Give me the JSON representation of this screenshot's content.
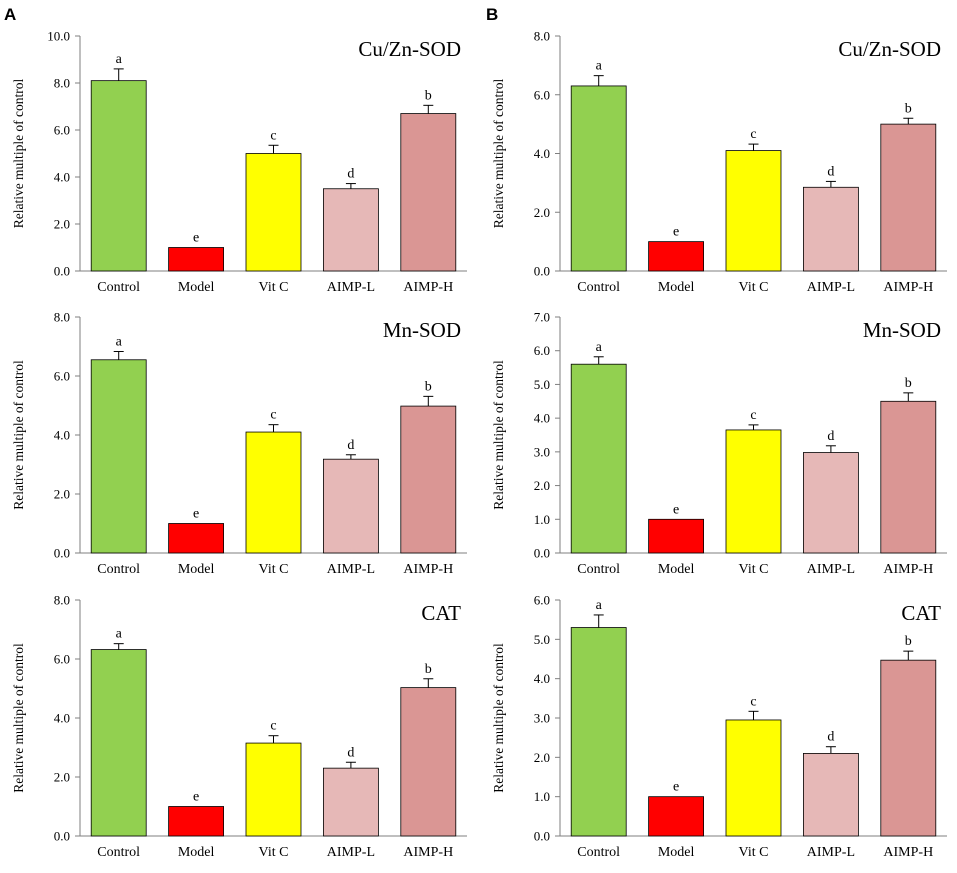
{
  "panels": [
    "A",
    "B"
  ],
  "chart_data": [
    {
      "type": "bar",
      "panel": "A",
      "title": "Cu/Zn-SOD",
      "ylabel": "Relative multiple of control",
      "xlabel": "",
      "categories": [
        "Control",
        "Model",
        "Vit C",
        "AIMP-L",
        "AIMP-H"
      ],
      "values": [
        8.1,
        1.0,
        5.0,
        3.5,
        6.7
      ],
      "errors": [
        0.5,
        0.0,
        0.35,
        0.22,
        0.35
      ],
      "significance": [
        "a",
        "e",
        "c",
        "d",
        "b"
      ],
      "ylim": [
        0,
        10
      ],
      "yticks": [
        "0.0",
        "2.0",
        "4.0",
        "6.0",
        "8.0",
        "10.0"
      ],
      "colors": [
        "#92d050",
        "#ff0000",
        "#ffff00",
        "#e6b8b7",
        "#da9694"
      ]
    },
    {
      "type": "bar",
      "panel": "B",
      "title": "Cu/Zn-SOD",
      "ylabel": "Relative multiple of control",
      "xlabel": "",
      "categories": [
        "Control",
        "Model",
        "Vit C",
        "AIMP-L",
        "AIMP-H"
      ],
      "values": [
        6.3,
        1.0,
        4.1,
        2.85,
        5.0
      ],
      "errors": [
        0.35,
        0.0,
        0.22,
        0.2,
        0.2
      ],
      "significance": [
        "a",
        "e",
        "c",
        "d",
        "b"
      ],
      "ylim": [
        0,
        8
      ],
      "yticks": [
        "0.0",
        "2.0",
        "4.0",
        "6.0",
        "8.0"
      ],
      "colors": [
        "#92d050",
        "#ff0000",
        "#ffff00",
        "#e6b8b7",
        "#da9694"
      ]
    },
    {
      "type": "bar",
      "panel": "A",
      "title": "Mn-SOD",
      "ylabel": "Relative multiple of control",
      "xlabel": "",
      "categories": [
        "Control",
        "Model",
        "Vit C",
        "AIMP-L",
        "AIMP-H"
      ],
      "values": [
        6.55,
        1.0,
        4.1,
        3.18,
        4.98
      ],
      "errors": [
        0.28,
        0.0,
        0.25,
        0.15,
        0.33
      ],
      "significance": [
        "a",
        "e",
        "c",
        "d",
        "b"
      ],
      "ylim": [
        0,
        8
      ],
      "yticks": [
        "0.0",
        "2.0",
        "4.0",
        "6.0",
        "8.0"
      ],
      "colors": [
        "#92d050",
        "#ff0000",
        "#ffff00",
        "#e6b8b7",
        "#da9694"
      ]
    },
    {
      "type": "bar",
      "panel": "B",
      "title": "Mn-SOD",
      "ylabel": "Relative multiple of control",
      "xlabel": "",
      "categories": [
        "Control",
        "Model",
        "Vit C",
        "AIMP-L",
        "AIMP-H"
      ],
      "values": [
        5.6,
        1.0,
        3.65,
        2.98,
        4.5
      ],
      "errors": [
        0.22,
        0.0,
        0.15,
        0.2,
        0.25
      ],
      "significance": [
        "a",
        "e",
        "c",
        "d",
        "b"
      ],
      "ylim": [
        0,
        7
      ],
      "yticks": [
        "0.0",
        "1.0",
        "2.0",
        "3.0",
        "4.0",
        "5.0",
        "6.0",
        "7.0"
      ],
      "colors": [
        "#92d050",
        "#ff0000",
        "#ffff00",
        "#e6b8b7",
        "#da9694"
      ]
    },
    {
      "type": "bar",
      "panel": "A",
      "title": "CAT",
      "ylabel": "Relative multiple of control",
      "xlabel": "",
      "categories": [
        "Control",
        "Model",
        "Vit C",
        "AIMP-L",
        "AIMP-H"
      ],
      "values": [
        6.32,
        1.0,
        3.15,
        2.3,
        5.03
      ],
      "errors": [
        0.2,
        0.0,
        0.25,
        0.2,
        0.3
      ],
      "significance": [
        "a",
        "e",
        "c",
        "d",
        "b"
      ],
      "ylim": [
        0,
        8
      ],
      "yticks": [
        "0.0",
        "2.0",
        "4.0",
        "6.0",
        "8.0"
      ],
      "colors": [
        "#92d050",
        "#ff0000",
        "#ffff00",
        "#e6b8b7",
        "#da9694"
      ]
    },
    {
      "type": "bar",
      "panel": "B",
      "title": "CAT",
      "ylabel": "Relative multiple of control",
      "xlabel": "",
      "categories": [
        "Control",
        "Model",
        "Vit C",
        "AIMP-L",
        "AIMP-H"
      ],
      "values": [
        5.3,
        1.0,
        2.95,
        2.1,
        4.47
      ],
      "errors": [
        0.32,
        0.0,
        0.22,
        0.17,
        0.23
      ],
      "significance": [
        "a",
        "e",
        "c",
        "d",
        "b"
      ],
      "ylim": [
        0,
        6
      ],
      "yticks": [
        "0.0",
        "1.0",
        "2.0",
        "3.0",
        "4.0",
        "5.0",
        "6.0"
      ],
      "colors": [
        "#92d050",
        "#ff0000",
        "#ffff00",
        "#e6b8b7",
        "#da9694"
      ]
    }
  ]
}
